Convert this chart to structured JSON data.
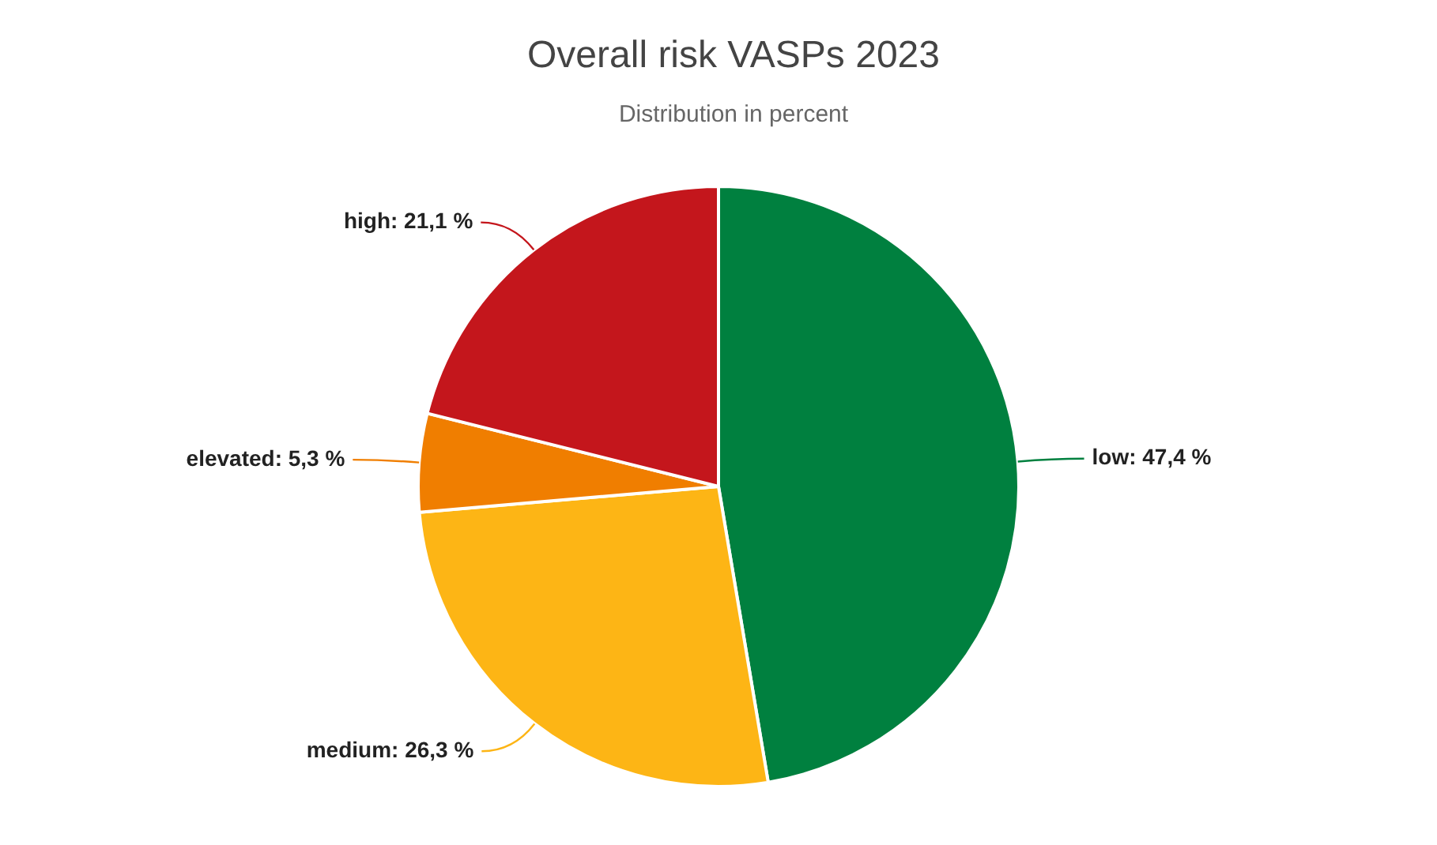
{
  "chart_data": {
    "type": "pie",
    "title": "Overall risk VASPs 2023",
    "subtitle": "Distribution in percent",
    "categories": [
      "low",
      "medium",
      "elevated",
      "high"
    ],
    "values": [
      47.4,
      26.3,
      5.3,
      21.1
    ],
    "colors": [
      "#00803f",
      "#fdb515",
      "#f07e00",
      "#c4161c"
    ],
    "value_labels": [
      "47,4 %",
      "26,3 %",
      "5,3 %",
      "21,1 %"
    ],
    "legend": false
  }
}
